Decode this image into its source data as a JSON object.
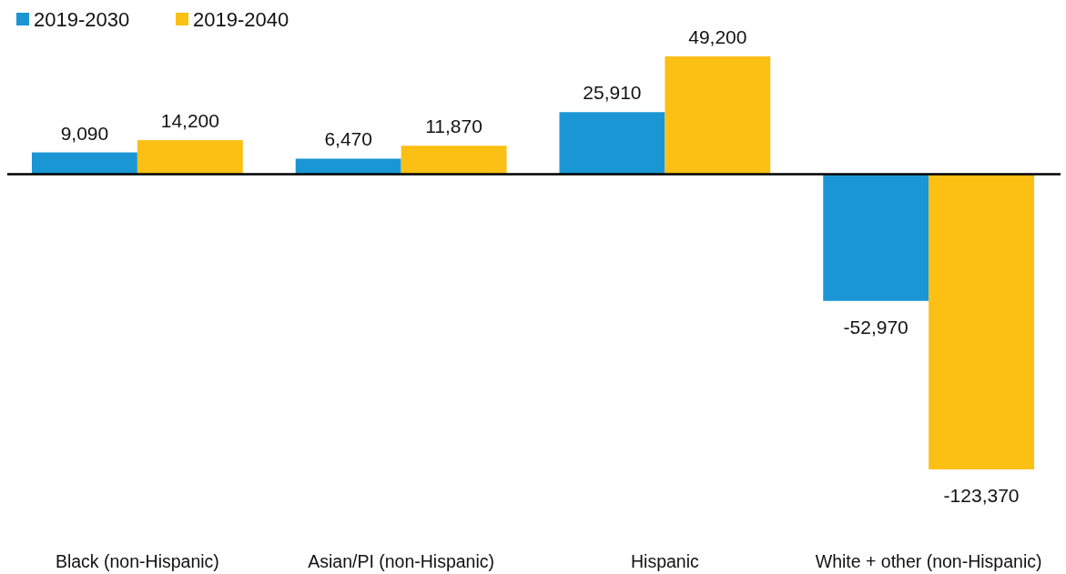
{
  "chart_data": {
    "type": "bar",
    "categories": [
      "Black (non-Hispanic)",
      "Asian/PI (non-Hispanic)",
      "Hispanic",
      "White + other (non-Hispanic)"
    ],
    "series": [
      {
        "name": "2019-2030",
        "color": "#1a96d4",
        "values": [
          9090,
          6470,
          25910,
          -52970
        ],
        "value_labels": [
          "9,090",
          "6,470",
          "25,910",
          "-52,970"
        ]
      },
      {
        "name": "2019-2040",
        "color": "#fcbf14",
        "values": [
          14200,
          11870,
          49200,
          -123370
        ],
        "value_labels": [
          "14,200",
          "11,870",
          "49,200",
          "-123,370"
        ]
      }
    ],
    "legend": "top left"
  }
}
